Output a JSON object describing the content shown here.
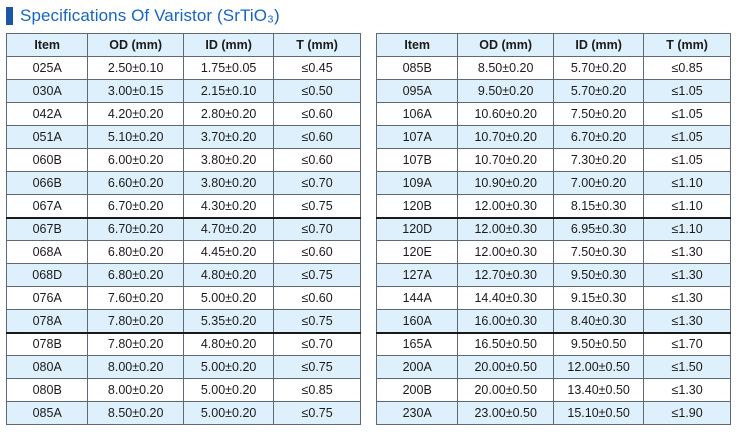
{
  "title": {
    "text": "Specifications Of Varistor (SrTiO₃)"
  },
  "columns": [
    "Item",
    "OD (mm)",
    "ID (mm)",
    "T (mm)"
  ],
  "tables": {
    "left": {
      "thick_after": [
        6,
        11
      ],
      "rows": [
        [
          "025A",
          "2.50±0.10",
          "1.75±0.05",
          "≤0.45"
        ],
        [
          "030A",
          "3.00±0.15",
          "2.15±0.10",
          "≤0.50"
        ],
        [
          "042A",
          "4.20±0.20",
          "2.80±0.20",
          "≤0.60"
        ],
        [
          "051A",
          "5.10±0.20",
          "3.70±0.20",
          "≤0.60"
        ],
        [
          "060B",
          "6.00±0.20",
          "3.80±0.20",
          "≤0.60"
        ],
        [
          "066B",
          "6.60±0.20",
          "3.80±0.20",
          "≤0.70"
        ],
        [
          "067A",
          "6.70±0.20",
          "4.30±0.20",
          "≤0.75"
        ],
        [
          "067B",
          "6.70±0.20",
          "4.70±0.20",
          "≤0.70"
        ],
        [
          "068A",
          "6.80±0.20",
          "4.45±0.20",
          "≤0.60"
        ],
        [
          "068D",
          "6.80±0.20",
          "4.80±0.20",
          "≤0.75"
        ],
        [
          "076A",
          "7.60±0.20",
          "5.00±0.20",
          "≤0.60"
        ],
        [
          "078A",
          "7.80±0.20",
          "5.35±0.20",
          "≤0.75"
        ],
        [
          "078B",
          "7.80±0.20",
          "4.80±0.20",
          "≤0.70"
        ],
        [
          "080A",
          "8.00±0.20",
          "5.00±0.20",
          "≤0.75"
        ],
        [
          "080B",
          "8.00±0.20",
          "5.00±0.20",
          "≤0.85"
        ],
        [
          "085A",
          "8.50±0.20",
          "5.00±0.20",
          "≤0.75"
        ]
      ]
    },
    "right": {
      "thick_after": [
        6,
        11
      ],
      "rows": [
        [
          "085B",
          "8.50±0.20",
          "5.70±0.20",
          "≤0.85"
        ],
        [
          "095A",
          "9.50±0.20",
          "5.70±0.20",
          "≤1.05"
        ],
        [
          "106A",
          "10.60±0.20",
          "7.50±0.20",
          "≤1.05"
        ],
        [
          "107A",
          "10.70±0.20",
          "6.70±0.20",
          "≤1.05"
        ],
        [
          "107B",
          "10.70±0.20",
          "7.30±0.20",
          "≤1.05"
        ],
        [
          "109A",
          "10.90±0.20",
          "7.00±0.20",
          "≤1.10"
        ],
        [
          "120B",
          "12.00±0.30",
          "8.15±0.30",
          "≤1.10"
        ],
        [
          "120D",
          "12.00±0.30",
          "6.95±0.30",
          "≤1.10"
        ],
        [
          "120E",
          "12.00±0.30",
          "7.50±0.30",
          "≤1.30"
        ],
        [
          "127A",
          "12.70±0.30",
          "9.50±0.30",
          "≤1.30"
        ],
        [
          "144A",
          "14.40±0.30",
          "9.15±0.30",
          "≤1.30"
        ],
        [
          "160A",
          "16.00±0.30",
          "8.40±0.30",
          "≤1.30"
        ],
        [
          "165A",
          "16.50±0.50",
          "9.50±0.50",
          "≤1.70"
        ],
        [
          "200A",
          "20.00±0.50",
          "12.00±0.50",
          "≤1.50"
        ],
        [
          "200B",
          "20.00±0.50",
          "13.40±0.50",
          "≤1.30"
        ],
        [
          "230A",
          "23.00±0.50",
          "15.10±0.50",
          "≤1.90"
        ]
      ]
    }
  },
  "colors": {
    "accent_bar": "#1d56a8",
    "title_text": "#1565c4",
    "header_fill": "#def0fb",
    "alt_row_fill": "#def0fb",
    "grid_border": "#5e6973",
    "group_separator": "#1a1a1a",
    "cell_text": "#1b1b1b"
  },
  "column_widths_pct": [
    23,
    27,
    25.5,
    24.5
  ]
}
